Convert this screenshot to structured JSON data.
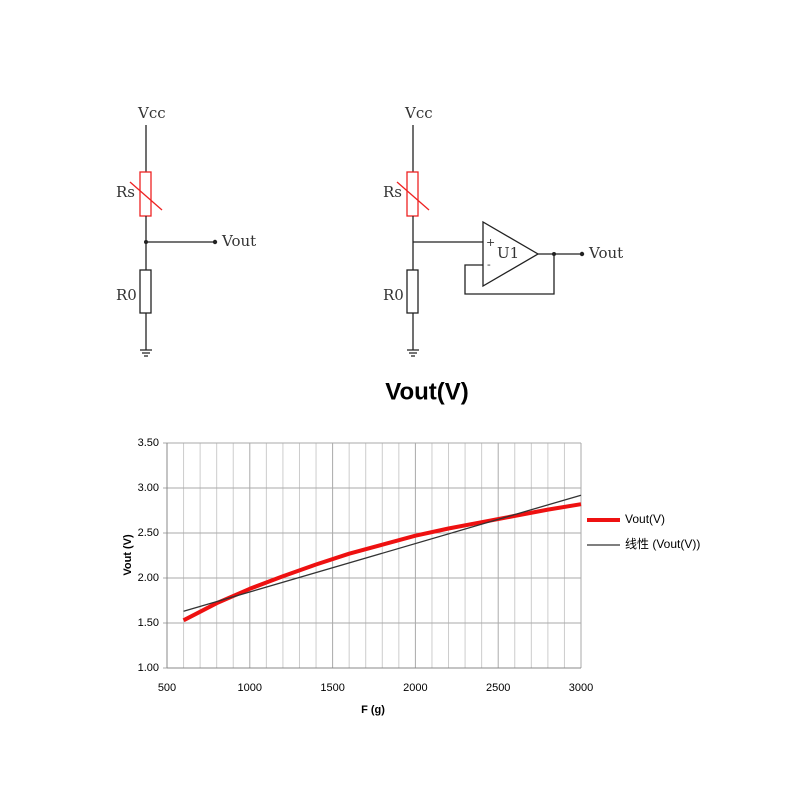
{
  "circuits": [
    {
      "vcc": "Vcc",
      "rs": "Rs",
      "r0": "R0",
      "vout": "Vout"
    },
    {
      "vcc": "Vcc",
      "rs": "Rs",
      "r0": "R0",
      "opamp": "U1",
      "plus": "+",
      "minus": "-",
      "vout": "Vout"
    }
  ],
  "chart_data": {
    "type": "line",
    "title": "Vout(V)",
    "x_label": "F (g)",
    "y_label": "Vout (V)",
    "xlim": [
      500,
      3000
    ],
    "xticks": [
      500,
      1000,
      1500,
      2000,
      2500,
      3000
    ],
    "x_minor_grid": [
      600,
      700,
      800,
      900,
      1100,
      1200,
      1300,
      1400,
      1600,
      1700,
      1800,
      1900,
      2100,
      2200,
      2300,
      2400,
      2600,
      2700,
      2800,
      2900
    ],
    "ylim": [
      1,
      3.5
    ],
    "yticks": [
      {
        "value": 1,
        "label": "1.00"
      },
      {
        "value": 1.5,
        "label": "1.50"
      },
      {
        "value": 2,
        "label": "2.00"
      },
      {
        "value": 2.5,
        "label": "2.50"
      },
      {
        "value": 3,
        "label": "3.00"
      },
      {
        "value": 3.5,
        "label": "3.50"
      }
    ],
    "grid": true,
    "legend": "right",
    "series": [
      {
        "name": "Vout(V)",
        "color": "#ee1111",
        "width": 4,
        "x": [
          600,
          800,
          1000,
          1200,
          1400,
          1600,
          1800,
          2000,
          2200,
          2400,
          2600,
          2800,
          3000
        ],
        "values": [
          1.53,
          1.72,
          1.88,
          2.02,
          2.15,
          2.27,
          2.37,
          2.47,
          2.55,
          2.62,
          2.69,
          2.76,
          2.82
        ]
      },
      {
        "name": "线性 (Vout(V))",
        "color": "#333333",
        "width": 1.3,
        "x": [
          600,
          3000
        ],
        "values": [
          1.63,
          2.92
        ]
      }
    ]
  }
}
